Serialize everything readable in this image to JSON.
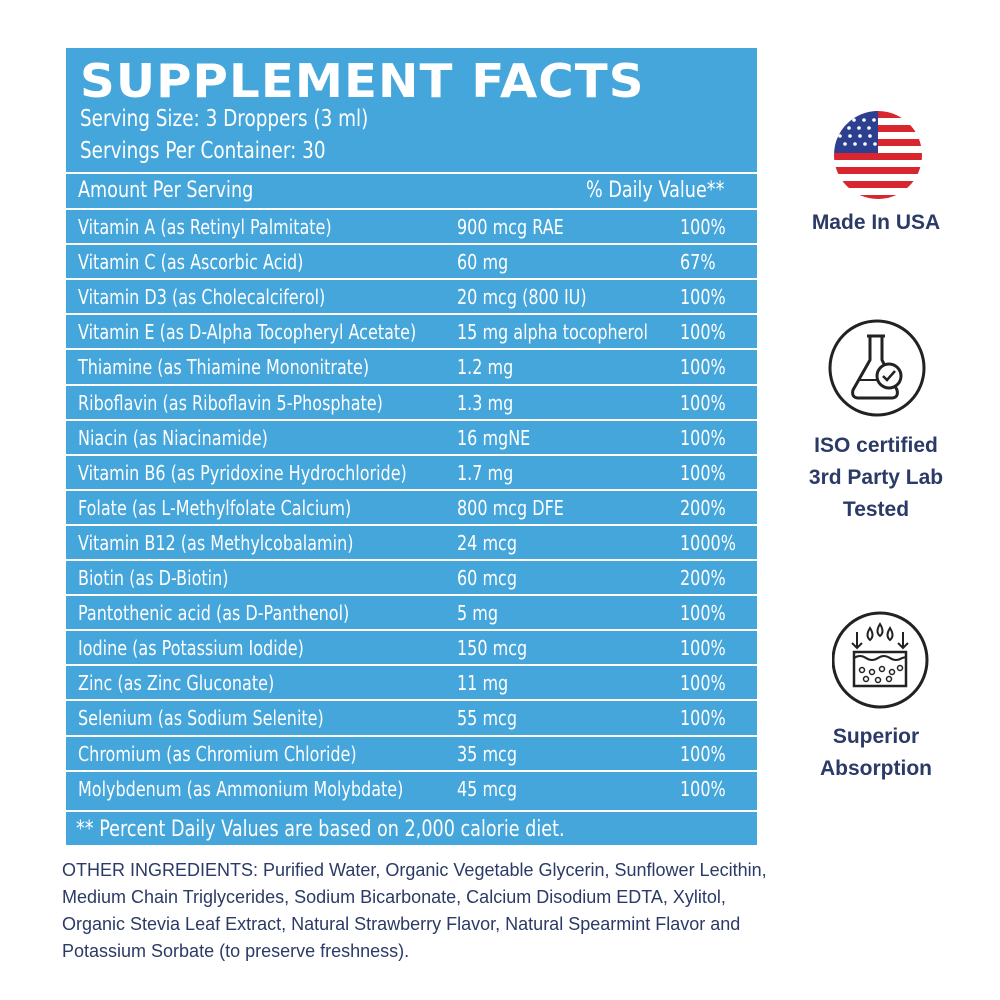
{
  "panel": {
    "title": "SUPPLEMENT FACTS",
    "serving_size": "Serving Size: 3 Droppers (3 ml)",
    "servings_per_container": "Servings Per Container: 30",
    "header": {
      "amount": "Amount Per Serving",
      "daily_value": "% Daily Value**"
    },
    "rows": [
      [
        "Vitamin A (as Retinyl Palmitate)",
        "900 mcg RAE",
        "100%"
      ],
      [
        "Vitamin C (as Ascorbic Acid)",
        "60 mg",
        "67%"
      ],
      [
        "Vitamin D3 (as Cholecalciferol)",
        "20 mcg (800 IU)",
        "100%"
      ],
      [
        "Vitamin E (as D-Alpha Tocopheryl Acetate)",
        "15 mg alpha tocopherol",
        "100%"
      ],
      [
        "Thiamine (as Thiamine Mononitrate)",
        "1.2 mg",
        "100%"
      ],
      [
        "Riboflavin (as Riboflavin 5-Phosphate)",
        "1.3 mg",
        "100%"
      ],
      [
        "Niacin (as Niacinamide)",
        "16 mgNE",
        "100%"
      ],
      [
        "Vitamin B6 (as Pyridoxine Hydrochloride)",
        "1.7 mg",
        "100%"
      ],
      [
        "Folate (as L-Methylfolate Calcium)",
        "800 mcg DFE",
        "200%"
      ],
      [
        "Vitamin B12 (as Methylcobalamin)",
        "24 mcg",
        "1000%"
      ],
      [
        "Biotin (as D-Biotin)",
        "60 mcg",
        "200%"
      ],
      [
        "Pantothenic acid (as D-Panthenol)",
        "5 mg",
        "100%"
      ],
      [
        "Iodine (as Potassium Iodide)",
        "150 mcg",
        "100%"
      ],
      [
        "Zinc (as Zinc Gluconate)",
        "11 mg",
        "100%"
      ],
      [
        "Selenium (as Sodium Selenite)",
        "55 mcg",
        "100%"
      ],
      [
        "Chromium (as Chromium Chloride)",
        "35 mcg",
        "100%"
      ],
      [
        "Molybdenum (as Ammonium Molybdate)",
        "45 mcg",
        "100%"
      ]
    ],
    "footnote": "** Percent Daily Values are based on 2,000 calorie diet."
  },
  "badges": [
    {
      "lines": [
        "Made In USA"
      ]
    },
    {
      "lines": [
        "ISO certified",
        "3rd Party Lab",
        "Tested"
      ]
    },
    {
      "lines": [
        "Superior",
        "Absorption"
      ]
    }
  ],
  "other_ingredients": "OTHER INGREDIENTS: Purified Water, Organic Vegetable Glycerin, Sunflower Lecithin, Medium Chain Triglycerides, Sodium Bicarbonate, Calcium Disodium EDTA, Xylitol, Organic Stevia Leaf Extract, Natural Strawberry Flavor, Natural Spearmint Flavor and Potassium Sorbate (to preserve freshness)."
}
